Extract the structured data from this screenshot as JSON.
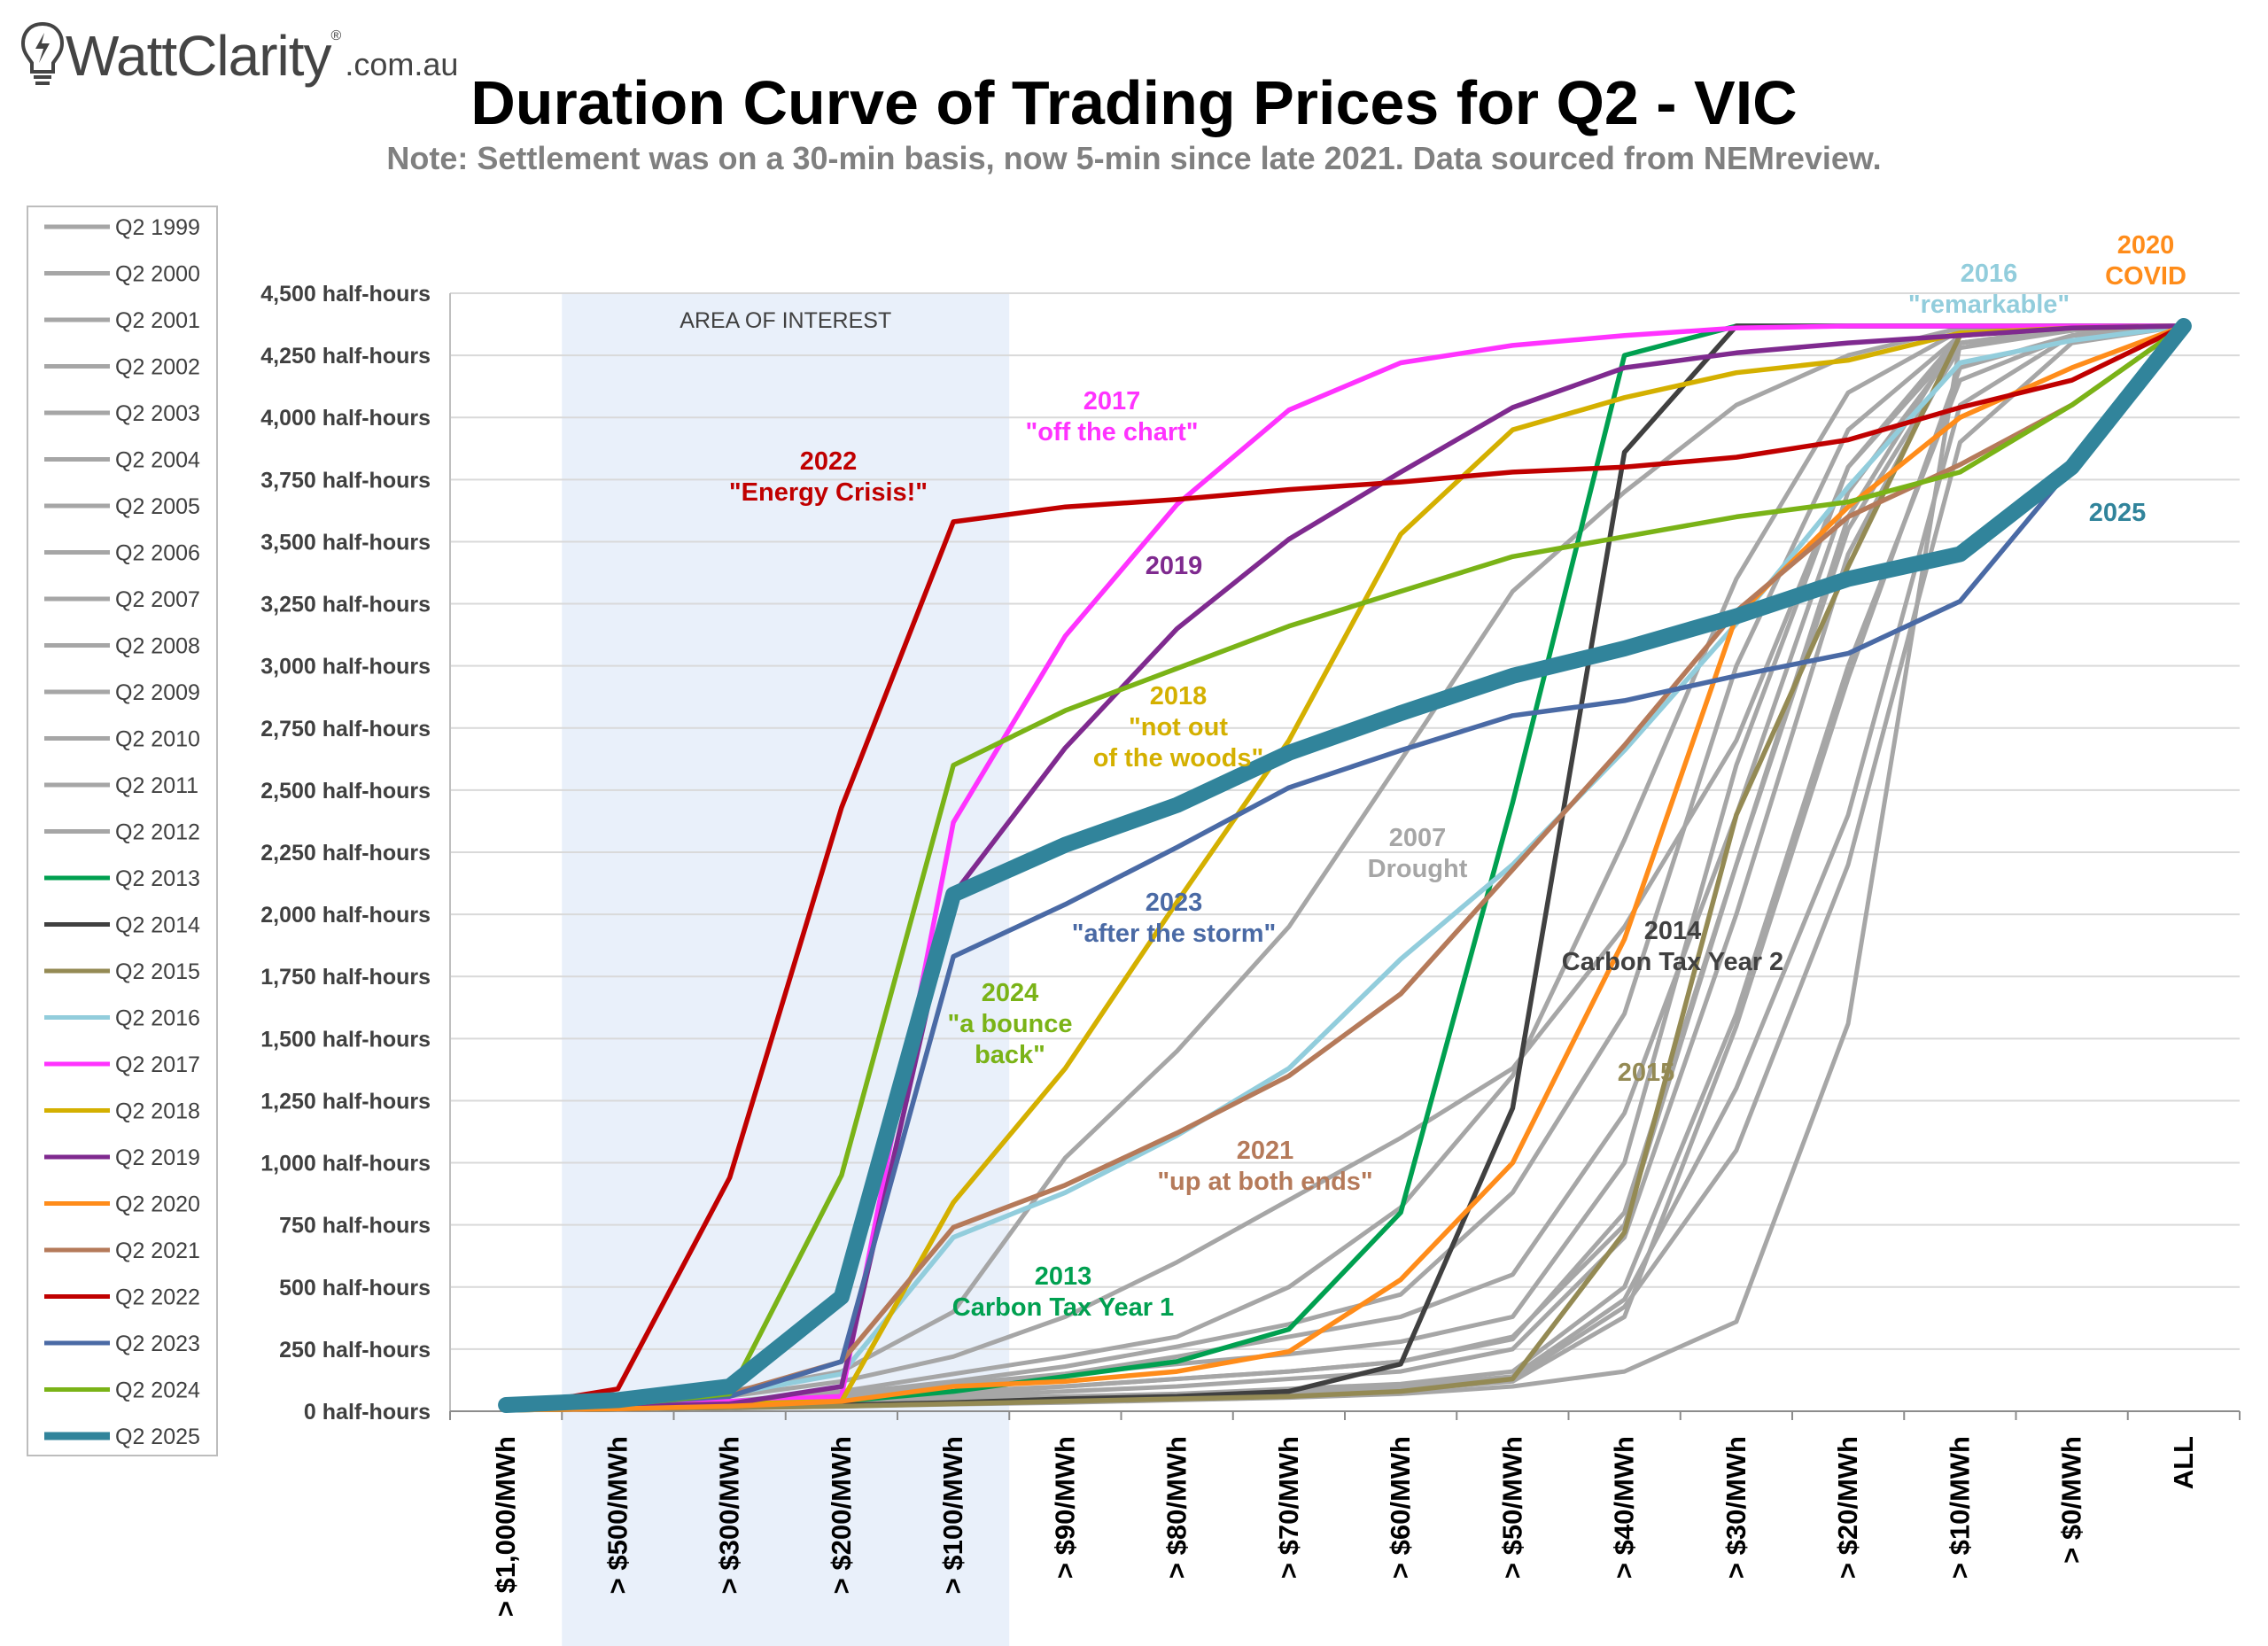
{
  "logo": {
    "brand": "WattClarity",
    "domain": ".com.au",
    "reg": "®"
  },
  "title": "Duration Curve of Trading Prices for Q2 - VIC",
  "subtitle": "Note: Settlement was on a 30-min basis, now 5-min since late 2021. Data sourced from NEMreview.",
  "colors": {
    "grey": "#a6a6a6",
    "q2013": "#00a050",
    "q2014": "#404040",
    "q2015": "#948a54",
    "q2016": "#92cddc",
    "q2017": "#ff33ff",
    "q2018": "#d4b000",
    "q2019": "#7f2a8f",
    "q2020": "#ff8c1a",
    "q2021": "#b57a5a",
    "q2022": "#c00000",
    "q2023": "#4a6aa5",
    "q2024": "#7ab317",
    "q2025": "#31849b",
    "shade": "#e9f0fa"
  },
  "chart_data": {
    "type": "line",
    "title": "Duration Curve of Trading Prices for Q2 - VIC",
    "ylim": [
      0,
      4500
    ],
    "y_ticks": [
      "0 half-hours",
      "250 half-hours",
      "500 half-hours",
      "750 half-hours",
      "1,000 half-hours",
      "1,250 half-hours",
      "1,500 half-hours",
      "1,750 half-hours",
      "2,000 half-hours",
      "2,250 half-hours",
      "2,500 half-hours",
      "2,750 half-hours",
      "3,000 half-hours",
      "3,250 half-hours",
      "3,500 half-hours",
      "3,750 half-hours",
      "4,000 half-hours",
      "4,250 half-hours",
      "4,500 half-hours"
    ],
    "categories": [
      "> $1,000/MWh",
      "> $500/MWh",
      "> $300/MWh",
      "> $200/MWh",
      "> $100/MWh",
      "> $90/MWh",
      "> $80/MWh",
      "> $70/MWh",
      "> $60/MWh",
      "> $50/MWh",
      "> $40/MWh",
      "> $30/MWh",
      "> $20/MWh",
      "> $10/MWh",
      "> $0/MWh",
      "ALL"
    ],
    "grid": true,
    "legend_position": "left",
    "shaded_region": {
      "label": "AREA OF INTEREST",
      "from": "> $500/MWh",
      "to": "> $100/MWh"
    },
    "series": [
      {
        "name": "Q2 1999",
        "color": "#a6a6a6",
        "values": [
          5,
          8,
          15,
          25,
          35,
          45,
          55,
          70,
          90,
          130,
          420,
          1050,
          2200,
          3900,
          4300,
          4368
        ]
      },
      {
        "name": "Q2 2000",
        "color": "#a6a6a6",
        "values": [
          5,
          10,
          20,
          30,
          40,
          50,
          60,
          80,
          100,
          140,
          450,
          1300,
          2400,
          4050,
          4330,
          4368
        ]
      },
      {
        "name": "Q2 2001",
        "color": "#a6a6a6",
        "values": [
          5,
          10,
          20,
          35,
          50,
          60,
          70,
          90,
          110,
          160,
          500,
          1600,
          3000,
          4150,
          4330,
          4368
        ]
      },
      {
        "name": "Q2 2002",
        "color": "#a6a6a6",
        "values": [
          5,
          8,
          15,
          25,
          35,
          45,
          55,
          70,
          85,
          120,
          380,
          1550,
          2950,
          4200,
          4330,
          4368
        ]
      },
      {
        "name": "Q2 2003",
        "color": "#a6a6a6",
        "values": [
          5,
          8,
          12,
          20,
          28,
          35,
          45,
          55,
          70,
          100,
          160,
          360,
          1560,
          4300,
          4350,
          4368
        ]
      },
      {
        "name": "Q2 2004",
        "color": "#a6a6a6",
        "values": [
          5,
          10,
          20,
          40,
          60,
          80,
          100,
          130,
          160,
          250,
          700,
          2000,
          3450,
          4300,
          4350,
          4368
        ]
      },
      {
        "name": "Q2 2005",
        "color": "#a6a6a6",
        "values": [
          5,
          10,
          25,
          50,
          80,
          100,
          130,
          160,
          200,
          300,
          750,
          2200,
          3600,
          4330,
          4360,
          4368
        ]
      },
      {
        "name": "Q2 2006",
        "color": "#a6a6a6",
        "values": [
          5,
          15,
          40,
          70,
          110,
          150,
          190,
          230,
          280,
          380,
          1000,
          2600,
          3800,
          4330,
          4360,
          4368
        ]
      },
      {
        "name": "Q2 2007",
        "color": "#a6a6a6",
        "values": [
          20,
          40,
          80,
          160,
          400,
          1020,
          1450,
          1950,
          2620,
          3300,
          3700,
          4050,
          4250,
          4360,
          4368,
          4368
        ]
      },
      {
        "name": "Q2 2008",
        "color": "#a6a6a6",
        "values": [
          10,
          30,
          60,
          120,
          220,
          380,
          600,
          850,
          1100,
          1380,
          1950,
          2700,
          3800,
          4300,
          4360,
          4368
        ]
      },
      {
        "name": "Q2 2009",
        "color": "#a6a6a6",
        "values": [
          5,
          10,
          20,
          40,
          70,
          100,
          130,
          160,
          200,
          290,
          800,
          2200,
          3550,
          4280,
          4350,
          4368
        ]
      },
      {
        "name": "Q2 2010",
        "color": "#a6a6a6",
        "values": [
          5,
          15,
          30,
          60,
          100,
          150,
          220,
          300,
          380,
          550,
          1200,
          2400,
          3700,
          4300,
          4350,
          4368
        ]
      },
      {
        "name": "Q2 2011",
        "color": "#a6a6a6",
        "values": [
          5,
          15,
          35,
          70,
          120,
          180,
          260,
          350,
          470,
          880,
          1600,
          3000,
          3950,
          4330,
          4360,
          4368
        ]
      },
      {
        "name": "Q2 2012",
        "color": "#a6a6a6",
        "values": [
          10,
          20,
          40,
          80,
          150,
          220,
          300,
          500,
          820,
          1350,
          2300,
          3350,
          4100,
          4350,
          4360,
          4368
        ]
      },
      {
        "name": "Q2 2013",
        "color": "#00a050",
        "values": [
          5,
          10,
          20,
          40,
          80,
          140,
          200,
          330,
          800,
          2450,
          4250,
          4368,
          4368,
          4368,
          4368,
          4368
        ]
      },
      {
        "name": "Q2 2014",
        "color": "#404040",
        "values": [
          5,
          10,
          15,
          25,
          35,
          50,
          60,
          80,
          190,
          1220,
          3860,
          4368,
          4368,
          4368,
          4368,
          4368
        ]
      },
      {
        "name": "Q2 2015",
        "color": "#948a54",
        "values": [
          5,
          10,
          15,
          20,
          30,
          40,
          50,
          60,
          80,
          130,
          720,
          2400,
          3400,
          4330,
          4360,
          4368
        ]
      },
      {
        "name": "Q2 2016",
        "color": "#92cddc",
        "values": [
          15,
          35,
          70,
          150,
          700,
          880,
          1110,
          1380,
          1820,
          2200,
          2660,
          3170,
          3720,
          4220,
          4310,
          4368
        ]
      },
      {
        "name": "Q2 2017",
        "color": "#ff33ff",
        "values": [
          15,
          25,
          40,
          60,
          2370,
          3120,
          3650,
          4030,
          4220,
          4290,
          4330,
          4360,
          4368,
          4368,
          4368,
          4368
        ]
      },
      {
        "name": "Q2 2018",
        "color": "#d4b000",
        "values": [
          15,
          20,
          30,
          40,
          840,
          1380,
          2050,
          2700,
          3530,
          3950,
          4080,
          4180,
          4230,
          4340,
          4360,
          4368
        ]
      },
      {
        "name": "Q2 2019",
        "color": "#7f2a8f",
        "values": [
          15,
          20,
          30,
          100,
          2080,
          2670,
          3150,
          3510,
          3780,
          4040,
          4200,
          4260,
          4300,
          4330,
          4360,
          4368
        ]
      },
      {
        "name": "Q2 2020",
        "color": "#ff8c1a",
        "values": [
          5,
          10,
          20,
          40,
          100,
          120,
          160,
          240,
          530,
          1000,
          1900,
          3200,
          3640,
          4000,
          4200,
          4368
        ]
      },
      {
        "name": "Q2 2021",
        "color": "#b57a5a",
        "values": [
          15,
          35,
          70,
          200,
          740,
          910,
          1120,
          1350,
          1680,
          2180,
          2680,
          3220,
          3600,
          3810,
          4050,
          4368
        ]
      },
      {
        "name": "Q2 2022",
        "color": "#c00000",
        "values": [
          15,
          90,
          940,
          2430,
          3580,
          3640,
          3670,
          3710,
          3740,
          3780,
          3800,
          3840,
          3910,
          4040,
          4150,
          4368
        ]
      },
      {
        "name": "Q2 2023",
        "color": "#4a6aa5",
        "values": [
          15,
          30,
          60,
          200,
          1830,
          2040,
          2270,
          2510,
          2660,
          2800,
          2860,
          2960,
          3050,
          3260,
          3800,
          4368
        ]
      },
      {
        "name": "Q2 2024",
        "color": "#7ab317",
        "values": [
          15,
          25,
          70,
          950,
          2600,
          2820,
          2990,
          3160,
          3300,
          3440,
          3520,
          3600,
          3660,
          3780,
          4050,
          4368
        ]
      },
      {
        "name": "Q2 2025",
        "color": "#31849b",
        "values": [
          25,
          45,
          100,
          460,
          2080,
          2280,
          2440,
          2650,
          2810,
          2960,
          3070,
          3200,
          3350,
          3450,
          3800,
          4368
        ]
      }
    ],
    "annotations": [
      {
        "lines": [
          "2022",
          "\"Energy Crisis!\""
        ],
        "color": "#c00000"
      },
      {
        "lines": [
          "2017",
          "\"off the chart\""
        ],
        "color": "#ff33ff"
      },
      {
        "lines": [
          "2019"
        ],
        "color": "#7f2a8f"
      },
      {
        "lines": [
          "2018",
          "\"not out",
          "of the woods\""
        ],
        "color": "#d4b000"
      },
      {
        "lines": [
          "2023",
          "\"after the storm\""
        ],
        "color": "#4a6aa5"
      },
      {
        "lines": [
          "2024",
          "\"a bounce",
          "back\""
        ],
        "color": "#7ab317"
      },
      {
        "lines": [
          "2007",
          "Drought"
        ],
        "color": "#a6a6a6"
      },
      {
        "lines": [
          "2014",
          "Carbon Tax Year 2"
        ],
        "color": "#404040"
      },
      {
        "lines": [
          "2015"
        ],
        "color": "#948a54"
      },
      {
        "lines": [
          "2021",
          "\"up at both ends\""
        ],
        "color": "#b57a5a"
      },
      {
        "lines": [
          "2013",
          "Carbon Tax Year 1"
        ],
        "color": "#00a050"
      },
      {
        "lines": [
          "2016",
          "\"remarkable\""
        ],
        "color": "#92cddc"
      },
      {
        "lines": [
          "2020",
          "COVID"
        ],
        "color": "#ff8c1a"
      },
      {
        "lines": [
          "2025"
        ],
        "color": "#31849b"
      }
    ]
  }
}
